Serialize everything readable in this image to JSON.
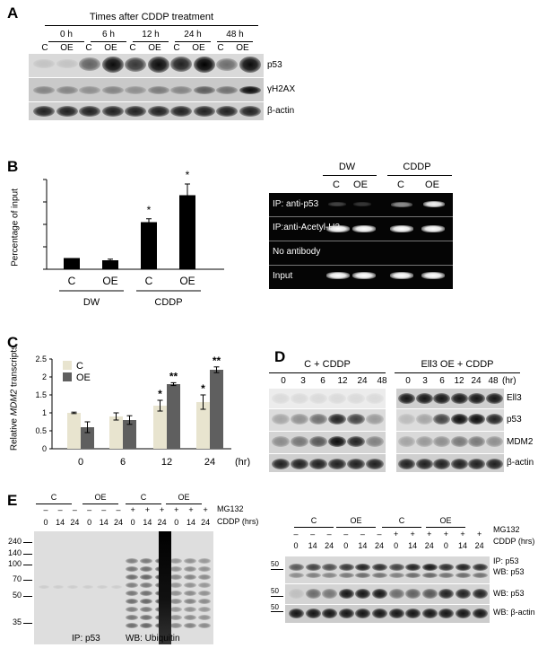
{
  "panelA": {
    "label": "A",
    "header": "Times after CDDP treatment",
    "times": [
      "0 h",
      "6 h",
      "12 h",
      "24 h",
      "48 h"
    ],
    "lanes": [
      "C",
      "OE",
      "C",
      "OE",
      "C",
      "OE",
      "C",
      "OE",
      "C",
      "OE"
    ],
    "rows": [
      "p53",
      "γH2AX",
      "β-actin"
    ]
  },
  "panelB": {
    "label": "B",
    "chart_data": {
      "type": "bar",
      "categories": [
        "C",
        "OE",
        "C",
        "OE"
      ],
      "groups": [
        "DW",
        "CDDP"
      ],
      "values": [
        1.0,
        0.8,
        4.2,
        6.6
      ],
      "errors": [
        0,
        0.1,
        0.3,
        1.0
      ],
      "significance": [
        "",
        "",
        "*",
        "*"
      ],
      "ylabel": "Percentage of input",
      "ylim": [
        0,
        8
      ],
      "bar_color": "#000000"
    },
    "gel": {
      "groups": [
        "DW",
        "CDDP"
      ],
      "lanes": [
        "C",
        "OE",
        "C",
        "OE"
      ],
      "rows": [
        "IP: anti-p53",
        "IP:anti-Acetyl-H3",
        "No antibody",
        "Input"
      ]
    }
  },
  "panelC": {
    "label": "C",
    "chart_data": {
      "type": "bar",
      "x": [
        "0",
        "6",
        "12",
        "24"
      ],
      "xunit": "(hr)",
      "series": [
        {
          "name": "C",
          "values": [
            1.0,
            0.9,
            1.2,
            1.3
          ],
          "errors": [
            0.02,
            0.1,
            0.15,
            0.2
          ],
          "color": "#e8e4cf"
        },
        {
          "name": "OE",
          "values": [
            0.6,
            0.8,
            1.8,
            2.2
          ],
          "errors": [
            0.15,
            0.12,
            0.04,
            0.08
          ],
          "color": "#5f5f5f"
        }
      ],
      "significance": {
        "C": [
          "",
          "",
          "*",
          "*"
        ],
        "OE": [
          "",
          "",
          "**",
          "**"
        ]
      },
      "ylabel_pre": "Relative ",
      "ylabel_italic": "MDM2",
      "ylabel_post": " transcripts",
      "yticks": [
        "0",
        "0.5",
        "1",
        "1.5",
        "2",
        "2.5"
      ],
      "ylim": [
        0,
        2.5
      ]
    }
  },
  "panelD": {
    "label": "D",
    "hr": "(hr)",
    "left_title": "C + CDDP",
    "right_title": "Ell3 OE + CDDP",
    "left_times": [
      "0",
      "3",
      "6",
      "12",
      "24",
      "48"
    ],
    "right_times": [
      "0",
      "3",
      "6",
      "12",
      "24",
      "48"
    ],
    "rows": [
      "Ell3",
      "p53",
      "MDM2",
      "β-actin"
    ]
  },
  "panelE": {
    "label": "E",
    "left": {
      "groups": [
        "C",
        "OE",
        "C",
        "OE"
      ],
      "mg132_label": "MG132",
      "cddp_label": "CDDP  (hrs)",
      "mg132": [
        "–",
        "–",
        "–",
        "–",
        "–",
        "–",
        "+",
        "+",
        "+",
        "+",
        "+",
        "+"
      ],
      "cddp": [
        "0",
        "14",
        "24",
        "0",
        "14",
        "24",
        "0",
        "14",
        "24",
        "0",
        "14",
        "24"
      ],
      "markers": [
        "240",
        "140",
        "100",
        "70",
        "50",
        "35"
      ],
      "ip_label": "IP: p53",
      "wb_label": "WB: Ubiquitin"
    },
    "right": {
      "groups": [
        "C",
        "OE",
        "C",
        "OE"
      ],
      "mg132_label": "MG132",
      "cddp_label": "CDDP  (hrs)",
      "mg132": [
        "–",
        "–",
        "–",
        "–",
        "–",
        "–",
        "+",
        "+",
        "+",
        "+",
        "+",
        "+"
      ],
      "cddp": [
        "0",
        "14",
        "24",
        "0",
        "14",
        "24",
        "0",
        "14",
        "24",
        "0",
        "14",
        "24"
      ],
      "markers": [
        "50",
        "50",
        "50"
      ],
      "row1_a": "IP: p53",
      "row1_b": "WB: p53",
      "row2": "WB: p53",
      "row3": "WB: β-actin"
    }
  }
}
